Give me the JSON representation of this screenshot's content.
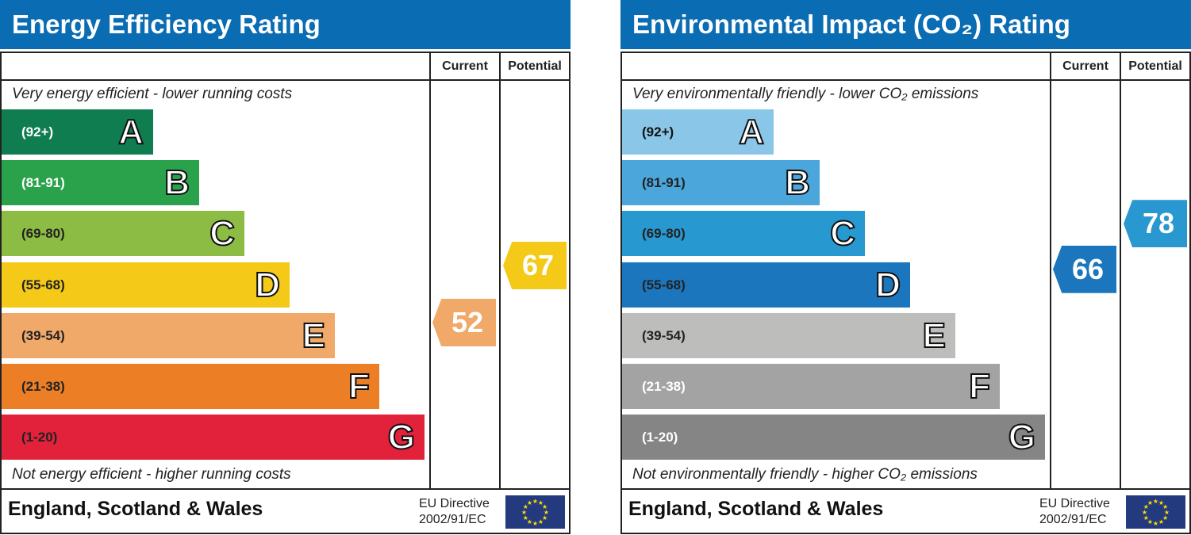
{
  "chart_data": [
    {
      "type": "bar",
      "title": "Energy Efficiency Rating",
      "columns": [
        "Current",
        "Potential"
      ],
      "top_note": "Very energy efficient - lower running costs",
      "bottom_note": "Not energy efficient - higher running costs",
      "bands": [
        {
          "letter": "A",
          "range": "(92+)",
          "color": "#0f7d50",
          "text": "#fff"
        },
        {
          "letter": "B",
          "range": "(81-91)",
          "color": "#2aa24b",
          "text": "#fff"
        },
        {
          "letter": "C",
          "range": "(69-80)",
          "color": "#8dbc45",
          "text": "#222"
        },
        {
          "letter": "D",
          "range": "(55-68)",
          "color": "#f4c918",
          "text": "#222"
        },
        {
          "letter": "E",
          "range": "(39-54)",
          "color": "#f1a96a",
          "text": "#222"
        },
        {
          "letter": "F",
          "range": "(21-38)",
          "color": "#ec7f26",
          "text": "#222"
        },
        {
          "letter": "G",
          "range": "(1-20)",
          "color": "#e2213b",
          "text": "#222"
        }
      ],
      "current": {
        "value": "52",
        "color": "#f1a96a"
      },
      "potential": {
        "value": "67",
        "color": "#f4c918"
      },
      "country": "England, Scotland & Wales",
      "directive": [
        "EU Directive",
        "2002/91/EC"
      ]
    },
    {
      "type": "bar",
      "title": "Environmental Impact (CO₂) Rating",
      "columns": [
        "Current",
        "Potential"
      ],
      "top_note": "Very environmentally friendly - lower CO₂ emissions",
      "bottom_note": "Not environmentally friendly - higher CO₂ emissions",
      "bands": [
        {
          "letter": "A",
          "range": "(92+)",
          "color": "#8ac6e8",
          "text": "#111"
        },
        {
          "letter": "B",
          "range": "(81-91)",
          "color": "#4aa6db",
          "text": "#222"
        },
        {
          "letter": "C",
          "range": "(69-80)",
          "color": "#2898d0",
          "text": "#222"
        },
        {
          "letter": "D",
          "range": "(55-68)",
          "color": "#1b76bd",
          "text": "#222"
        },
        {
          "letter": "E",
          "range": "(39-54)",
          "color": "#bdbdbc",
          "text": "#222"
        },
        {
          "letter": "F",
          "range": "(21-38)",
          "color": "#a3a3a3",
          "text": "#fff"
        },
        {
          "letter": "G",
          "range": "(1-20)",
          "color": "#858585",
          "text": "#fff"
        }
      ],
      "current": {
        "value": "66",
        "color": "#1b76bd"
      },
      "potential": {
        "value": "78",
        "color": "#2a98d0"
      },
      "country": "England, Scotland & Wales",
      "directive": [
        "EU Directive",
        "2002/91/EC"
      ]
    }
  ]
}
